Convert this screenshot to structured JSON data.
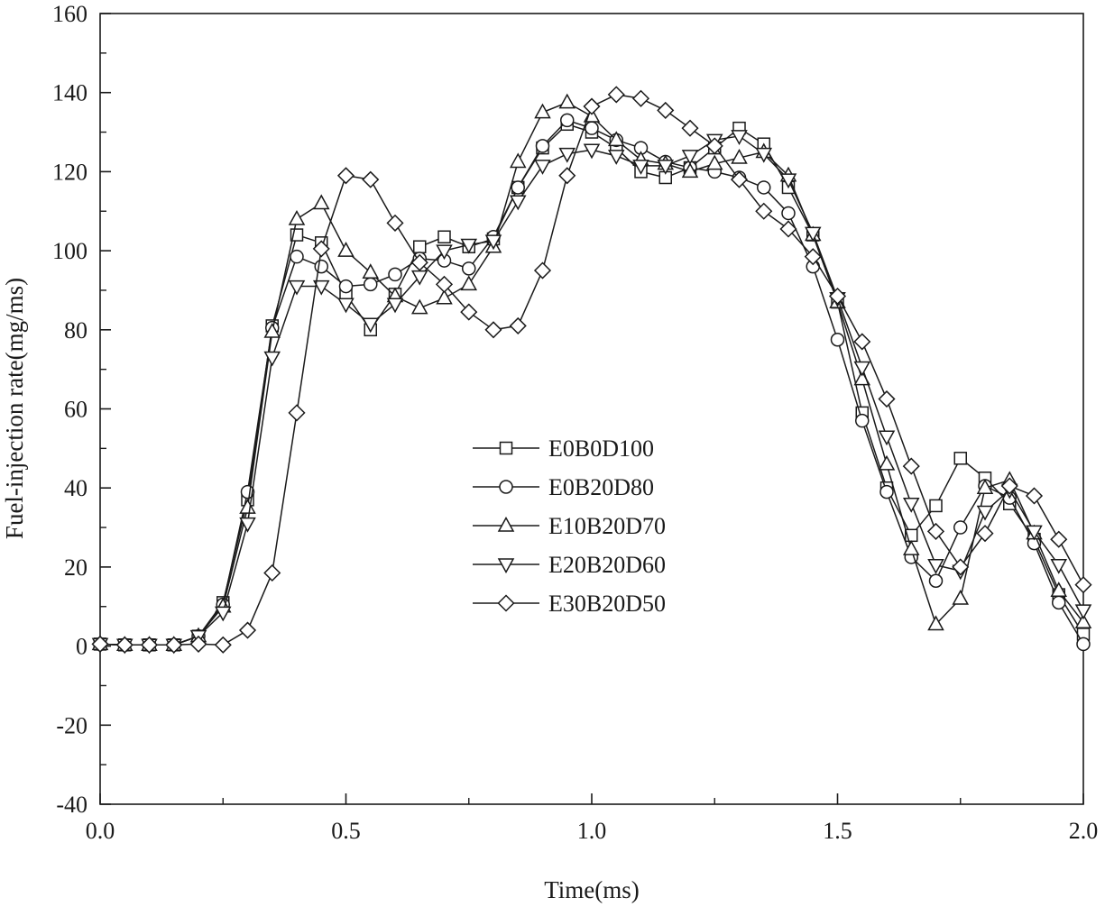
{
  "chart_data": {
    "type": "line",
    "title": "",
    "xlabel": "Time(ms)",
    "ylabel": "Fuel-injection rate(mg/ms)",
    "xlim": [
      0.0,
      2.0
    ],
    "ylim": [
      -40,
      160
    ],
    "xticks": [
      0.0,
      0.5,
      1.0,
      1.5,
      2.0
    ],
    "xtick_labels": [
      "0.0",
      "0.5",
      "1.0",
      "1.5",
      "2.0"
    ],
    "yticks": [
      -40,
      -20,
      0,
      20,
      40,
      60,
      80,
      100,
      120,
      140,
      160
    ],
    "ytick_labels": [
      "-40",
      "-20",
      "0",
      "20",
      "40",
      "60",
      "80",
      "100",
      "120",
      "140",
      "160"
    ],
    "legend_position": "center",
    "x": [
      0.0,
      0.05,
      0.1,
      0.15,
      0.2,
      0.25,
      0.3,
      0.35,
      0.4,
      0.45,
      0.5,
      0.55,
      0.6,
      0.65,
      0.7,
      0.75,
      0.8,
      0.85,
      0.9,
      0.95,
      1.0,
      1.05,
      1.1,
      1.15,
      1.2,
      1.25,
      1.3,
      1.35,
      1.4,
      1.45,
      1.5,
      1.55,
      1.6,
      1.65,
      1.7,
      1.75,
      1.8,
      1.85,
      1.9,
      1.95,
      2.0
    ],
    "series": [
      {
        "name": "E0B0D100",
        "marker": "square",
        "values": [
          0.5,
          0.3,
          0.3,
          0.3,
          2.5,
          11,
          37,
          81,
          104,
          102,
          89,
          80,
          89,
          101,
          103.5,
          101,
          103,
          116,
          126,
          132,
          130,
          126,
          120,
          118.5,
          121,
          126,
          131,
          127,
          116,
          104,
          87,
          59,
          40,
          28,
          35.5,
          47.5,
          42.5,
          36,
          27,
          13,
          3
        ]
      },
      {
        "name": "E0B20D80",
        "marker": "circle",
        "values": [
          0.5,
          0.3,
          0.3,
          0.3,
          2.5,
          10.5,
          39,
          80.5,
          98.5,
          96,
          91,
          91.5,
          94,
          98,
          97.5,
          95.5,
          103.5,
          116,
          126.5,
          133,
          131,
          128,
          126,
          122.5,
          121,
          120,
          118.5,
          116,
          109.5,
          96,
          77.5,
          57,
          39,
          22.5,
          16.5,
          30,
          40.5,
          37.5,
          26,
          11,
          0.5
        ]
      },
      {
        "name": "E10B20D70",
        "marker": "triangle-up",
        "values": [
          0.5,
          0.3,
          0.3,
          0.3,
          2.5,
          10,
          35,
          79.5,
          108,
          112,
          100,
          94.5,
          88.5,
          85.5,
          88,
          91.5,
          101,
          122.5,
          135,
          137.5,
          134,
          128,
          123,
          122,
          120,
          122,
          123.5,
          125,
          119,
          104,
          87,
          67.5,
          46,
          24.5,
          5.5,
          12,
          40,
          42,
          28.5,
          14,
          6
        ]
      },
      {
        "name": "E20B20D60",
        "marker": "triangle-down",
        "values": [
          0.5,
          0.3,
          0.3,
          0.3,
          2.5,
          8.5,
          31,
          73,
          91,
          91,
          86.5,
          81.5,
          86.5,
          93.5,
          100,
          101.5,
          102.5,
          112.5,
          121.5,
          124.5,
          125.5,
          124,
          121.5,
          121.5,
          124,
          128,
          129,
          124.5,
          118,
          104.5,
          88,
          70.5,
          53,
          36,
          20.5,
          19,
          34,
          39.5,
          29,
          20.5,
          9
        ]
      },
      {
        "name": "E30B20D50",
        "marker": "diamond",
        "values": [
          0.5,
          0.3,
          0.3,
          0.3,
          0.5,
          0.3,
          4,
          18.5,
          59,
          100.5,
          119,
          118,
          107,
          97,
          91.5,
          84.5,
          80,
          81,
          95,
          119,
          136.5,
          139.5,
          138.5,
          135.5,
          131,
          126.5,
          118,
          110,
          105.5,
          98.5,
          88.5,
          77,
          62.5,
          45.5,
          29,
          20,
          28.5,
          40.5,
          38,
          27,
          15.5
        ]
      }
    ]
  }
}
